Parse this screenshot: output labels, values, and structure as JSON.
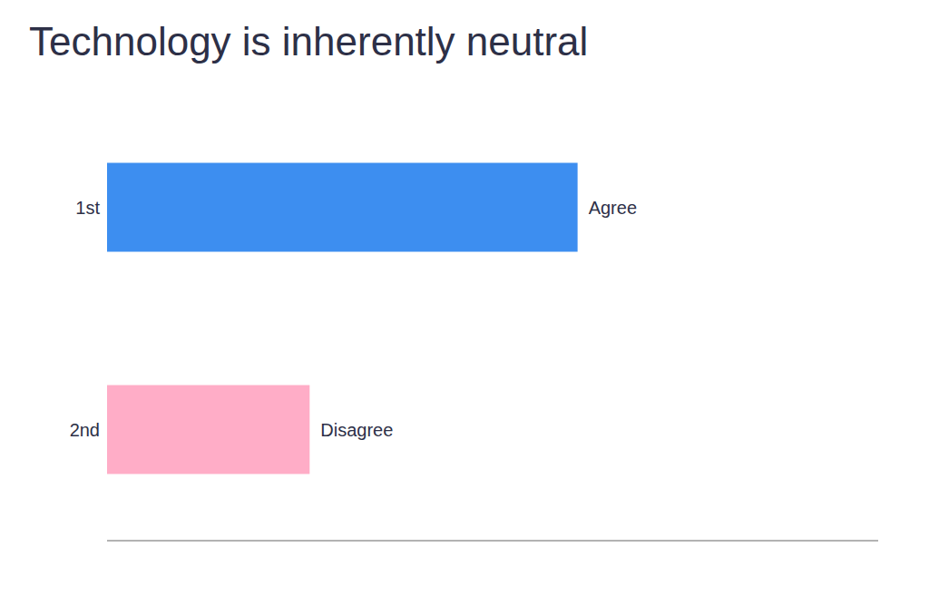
{
  "chart_data": {
    "type": "bar",
    "orientation": "horizontal",
    "title": "Technology is inherently neutral",
    "categories": [
      "1st",
      "2nd"
    ],
    "values": [
      72,
      31
    ],
    "colors": [
      "#3d8ef0",
      "#ffadc7"
    ],
    "annotations": [
      "Agree",
      "Disagree"
    ],
    "xlim": [
      0,
      118
    ],
    "grid": false,
    "tick_labels": "y"
  }
}
